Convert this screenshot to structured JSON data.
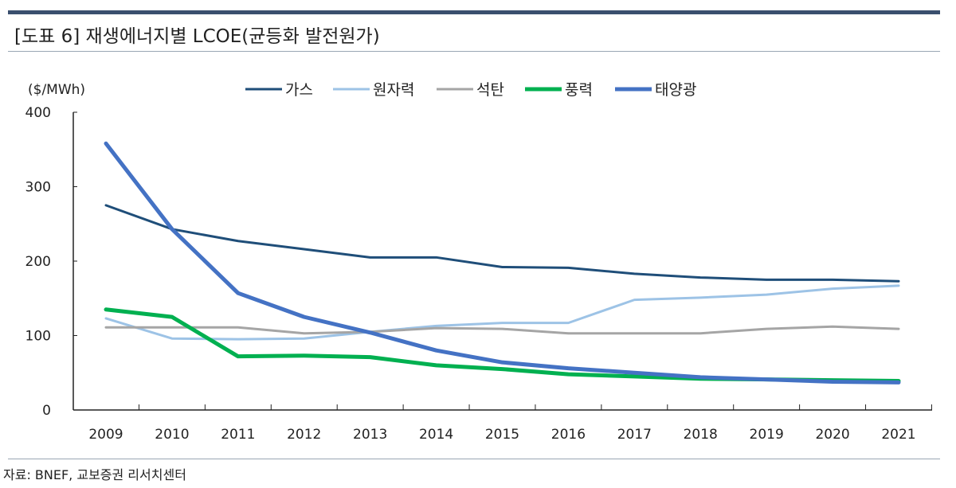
{
  "title": "[도표 6] 재생에너지별 LCOE(균등화 발전원가)",
  "source": "자료: BNEF, 교보증권 리서치센터",
  "chart_data": {
    "type": "line",
    "title": "",
    "ylabel": "($/MWh)",
    "xlabel": "",
    "ylim": [
      0,
      400
    ],
    "yticks": [
      0,
      100,
      200,
      300,
      400
    ],
    "grid": false,
    "legend": "top",
    "categories": [
      "2009",
      "2010",
      "2011",
      "2012",
      "2013",
      "2014",
      "2015",
      "2016",
      "2017",
      "2018",
      "2019",
      "2020",
      "2021"
    ],
    "series": [
      {
        "name": "가스",
        "color": "#1f4e79",
        "width": 3,
        "values": [
          275,
          243,
          227,
          216,
          205,
          205,
          192,
          191,
          183,
          178,
          175,
          175,
          173
        ]
      },
      {
        "name": "원자력",
        "color": "#9dc3e6",
        "width": 3,
        "values": [
          123,
          96,
          95,
          96,
          105,
          113,
          117,
          117,
          148,
          151,
          155,
          163,
          167
        ]
      },
      {
        "name": "석탄",
        "color": "#a5a5a5",
        "width": 3,
        "values": [
          111,
          111,
          111,
          103,
          105,
          110,
          109,
          103,
          103,
          103,
          109,
          112,
          109
        ]
      },
      {
        "name": "풍력",
        "color": "#00b050",
        "width": 5,
        "values": [
          135,
          125,
          72,
          73,
          71,
          60,
          55,
          48,
          45,
          42,
          41,
          40,
          39
        ]
      },
      {
        "name": "태양광",
        "color": "#4472c4",
        "width": 5,
        "values": [
          358,
          243,
          157,
          125,
          104,
          80,
          64,
          56,
          50,
          44,
          41,
          38,
          37
        ]
      }
    ]
  }
}
